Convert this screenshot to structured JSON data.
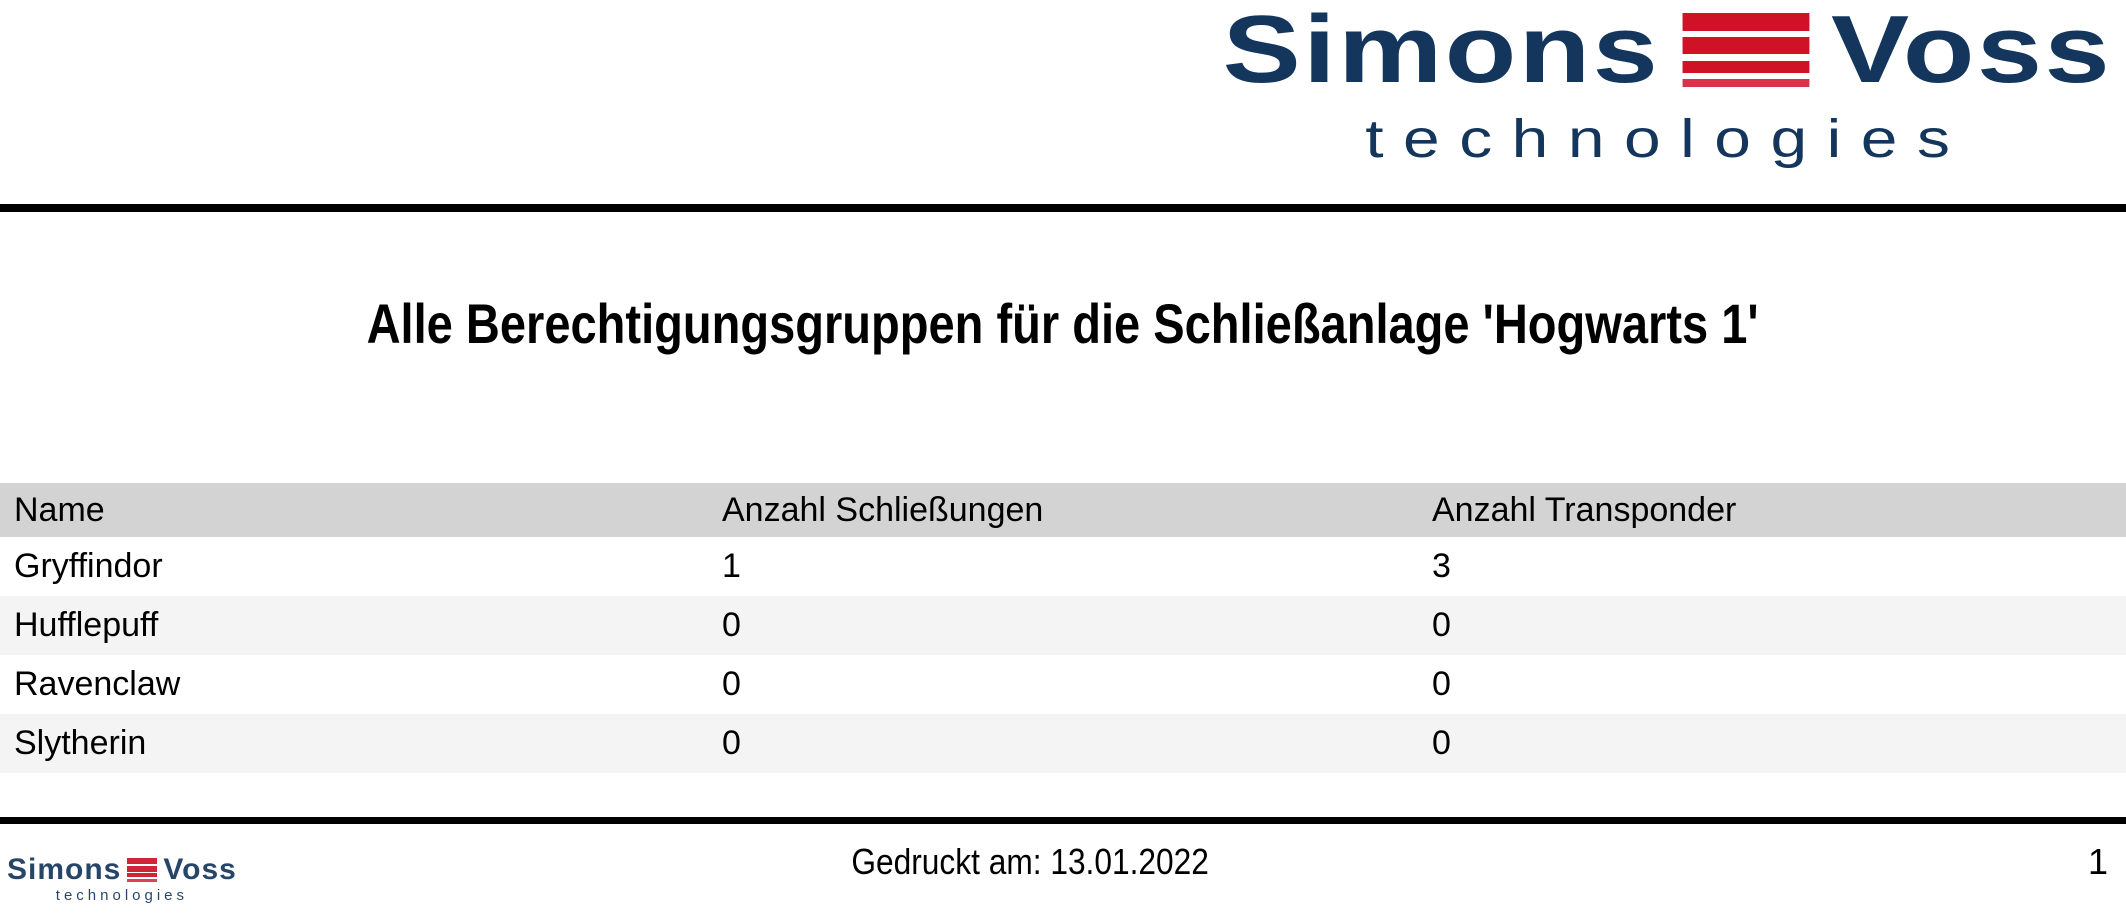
{
  "logo": {
    "simons": "Simons",
    "voss": "Voss",
    "technologies": "technologies"
  },
  "title": "Alle Berechtigungsgruppen für die Schließanlage 'Hogwarts 1'",
  "table": {
    "headers": [
      "Name",
      "Anzahl Schließungen",
      "Anzahl Transponder"
    ],
    "rows": [
      {
        "name": "Gryffindor",
        "anzahl_schliessungen": "1",
        "anzahl_transponder": "3"
      },
      {
        "name": "Hufflepuff",
        "anzahl_schliessungen": "0",
        "anzahl_transponder": "0"
      },
      {
        "name": "Ravenclaw",
        "anzahl_schliessungen": "0",
        "anzahl_transponder": "0"
      },
      {
        "name": "Slytherin",
        "anzahl_schliessungen": "0",
        "anzahl_transponder": "0"
      }
    ]
  },
  "footer": {
    "printed_at": "Gedruckt am: 13.01.2022",
    "page_number": "1"
  },
  "colors": {
    "brand_navy": "#14365c",
    "brand_red": "#cf1226",
    "table_header_bg": "#d3d3d3",
    "row_alt_bg": "#f4f4f4",
    "rule_black": "#000000"
  }
}
